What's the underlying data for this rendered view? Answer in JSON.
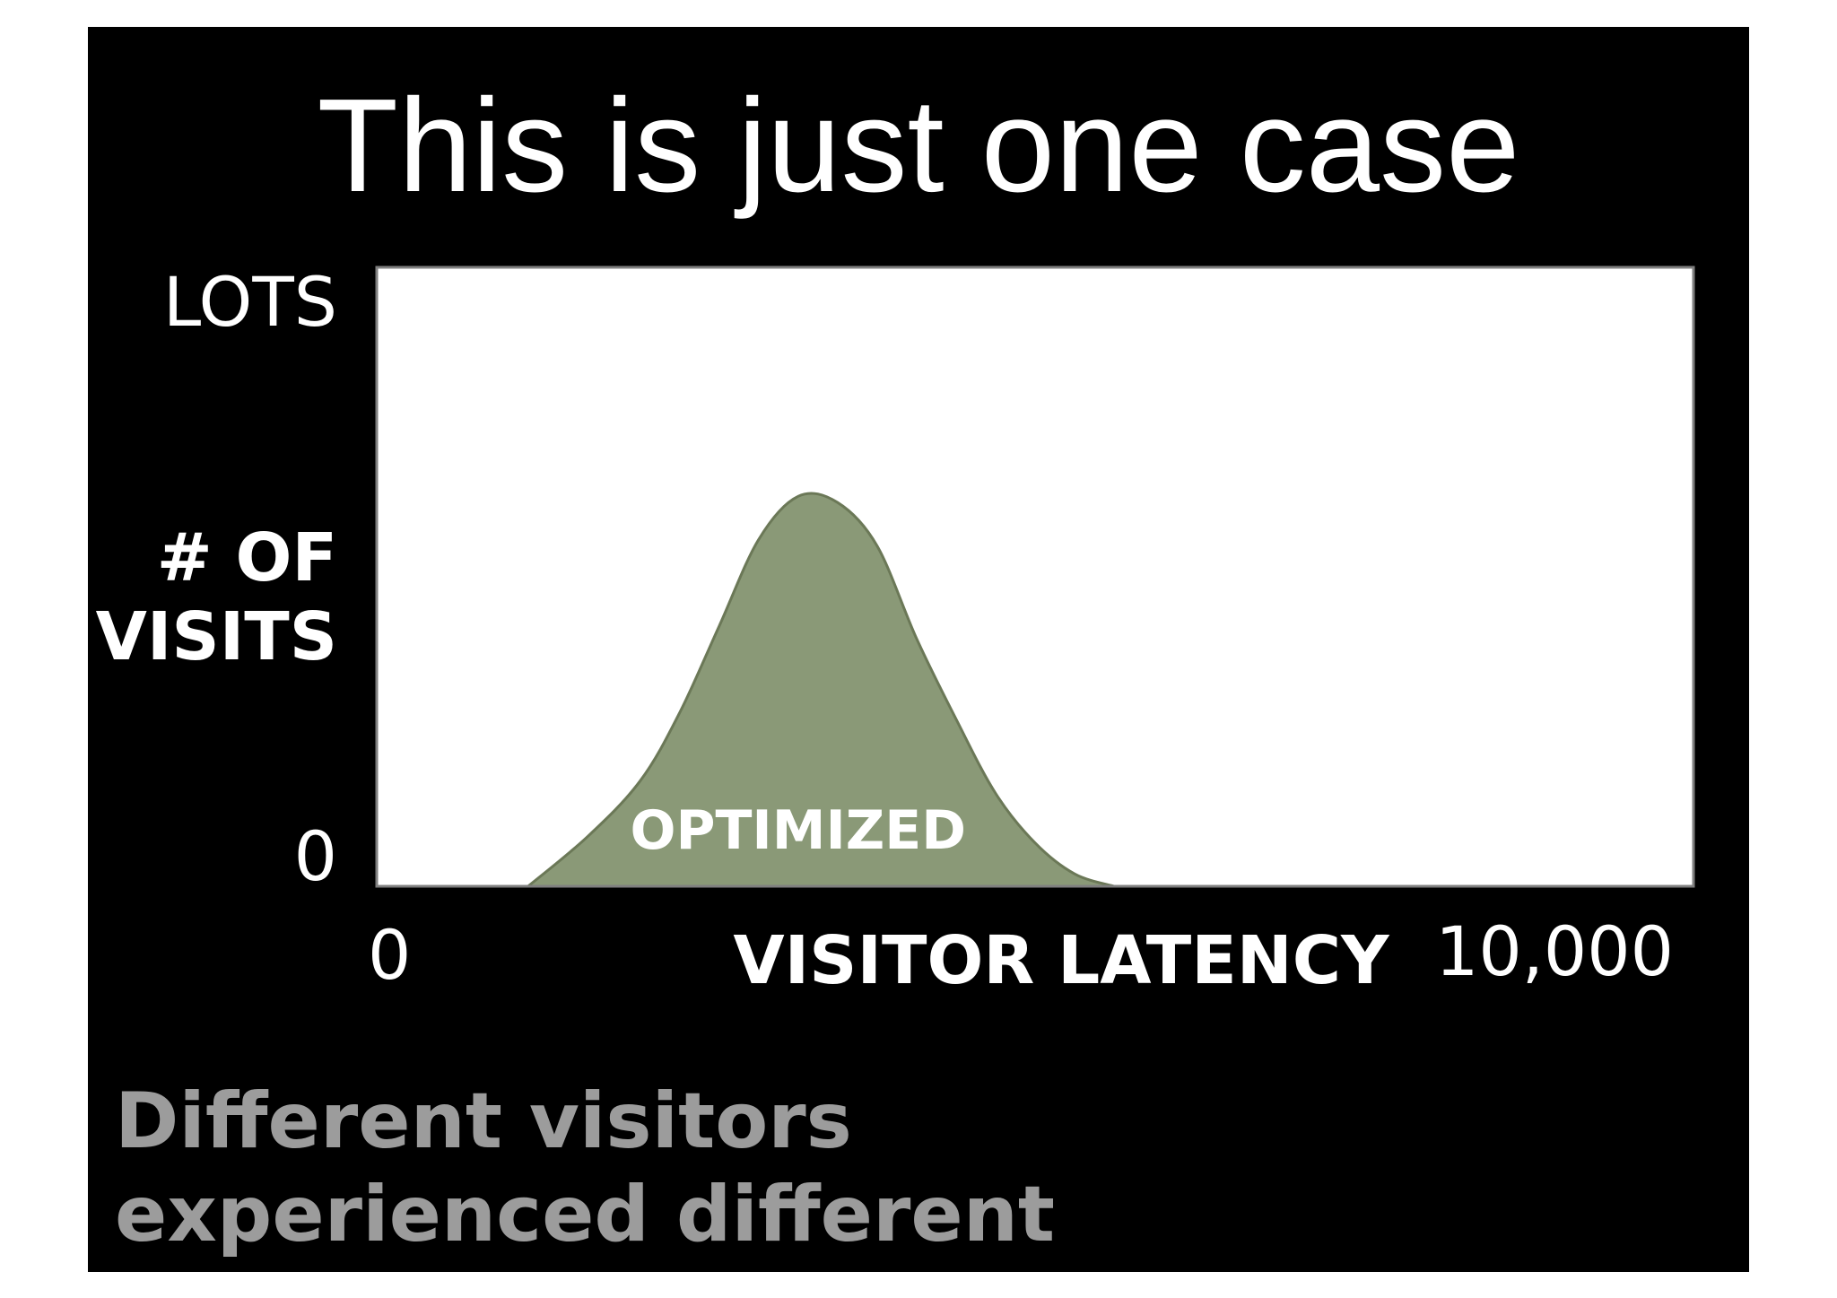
{
  "slide": {
    "title": "This is just one case",
    "caption": {
      "line1": "Different visitors",
      "line2": "experienced different"
    }
  },
  "colors": {
    "background": "#000000",
    "plot_area": "#ffffff",
    "plot_border": "#7f7f7f",
    "series_fill": "#8a9977",
    "series_stroke": "#6b7857",
    "caption_text": "#9c9c9c"
  },
  "chart_data": {
    "type": "area",
    "xlabel": "VISITOR LATENCY",
    "ylabel_line1": "# OF",
    "ylabel_line2": "VISITS",
    "xlim": [
      0,
      10000
    ],
    "ylim": [
      0,
      1
    ],
    "x_tick_labels": {
      "min": "0",
      "max": "10,000"
    },
    "y_tick_labels": {
      "min": "0",
      "max": "LOTS"
    },
    "grid": false,
    "series": [
      {
        "name": "OPTIMIZED",
        "x": [
          1150,
          1600,
          2000,
          2300,
          2600,
          2900,
          3200,
          3500,
          3800,
          4100,
          4400,
          4700,
          5000,
          5300,
          5600
        ],
        "y": [
          0,
          0.08,
          0.17,
          0.28,
          0.42,
          0.56,
          0.63,
          0.62,
          0.55,
          0.4,
          0.27,
          0.15,
          0.07,
          0.02,
          0
        ]
      }
    ]
  }
}
